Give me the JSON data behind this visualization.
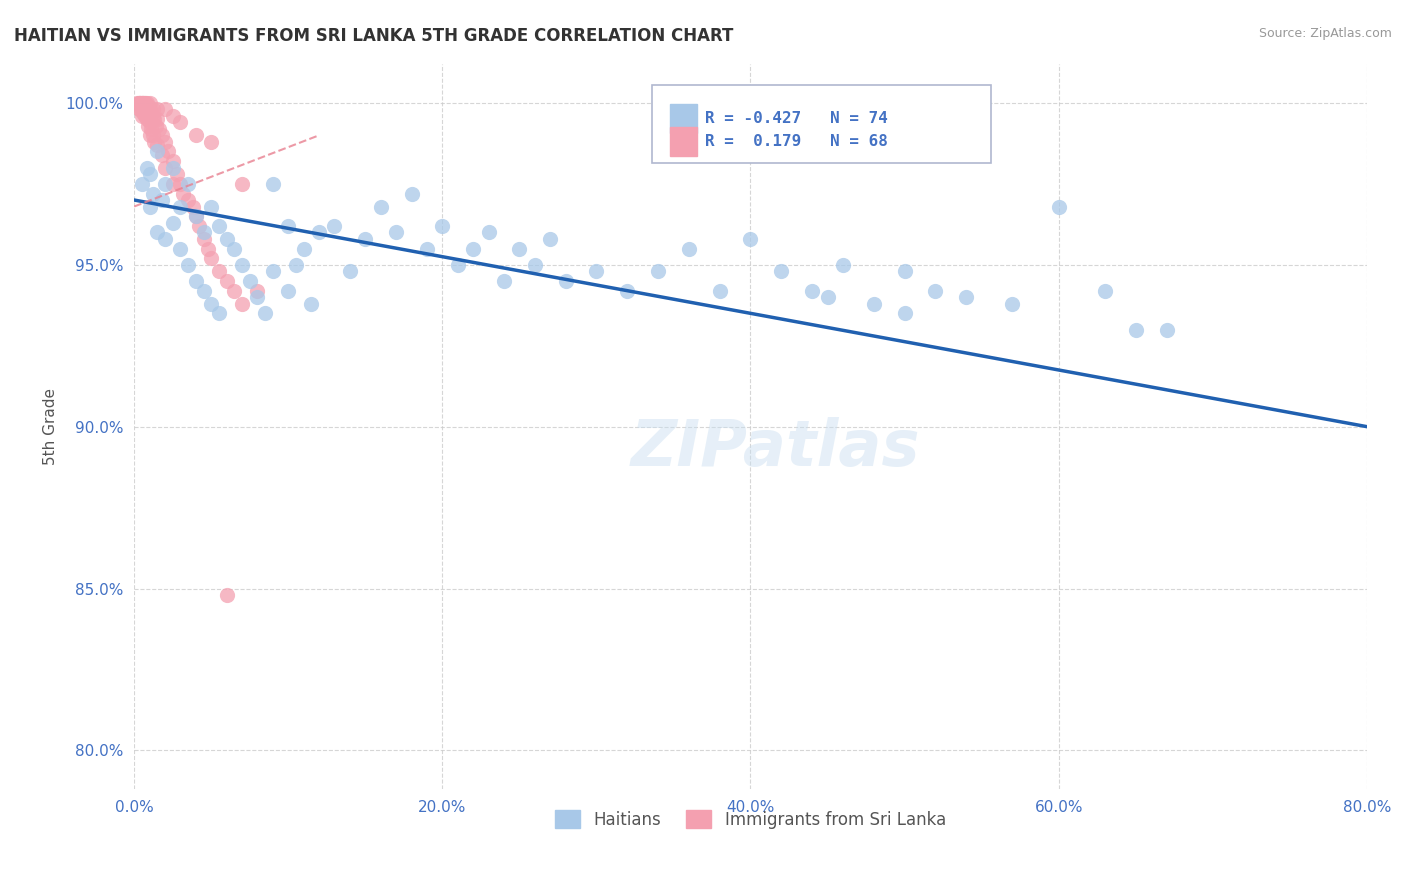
{
  "title": "HAITIAN VS IMMIGRANTS FROM SRI LANKA 5TH GRADE CORRELATION CHART",
  "source_text": "Source: ZipAtlas.com",
  "ylabel": "5th Grade",
  "xlim": [
    0.0,
    0.8
  ],
  "ylim": [
    0.788,
    1.012
  ],
  "xtick_labels": [
    "0.0%",
    "20.0%",
    "40.0%",
    "60.0%",
    "80.0%"
  ],
  "xtick_vals": [
    0.0,
    0.2,
    0.4,
    0.6,
    0.8
  ],
  "ytick_labels": [
    "80.0%",
    "85.0%",
    "90.0%",
    "95.0%",
    "100.0%"
  ],
  "ytick_vals": [
    0.8,
    0.85,
    0.9,
    0.95,
    1.0
  ],
  "blue_R": -0.427,
  "blue_N": 74,
  "pink_R": 0.179,
  "pink_N": 68,
  "blue_color": "#a8c8e8",
  "pink_color": "#f4a0b0",
  "line_color": "#2060b0",
  "pink_line_color": "#e88090",
  "title_color": "#333333",
  "axis_color": "#4472c4",
  "grid_color": "#cccccc",
  "watermark": "ZIPatlas",
  "blue_scatter_x": [
    0.005,
    0.008,
    0.01,
    0.01,
    0.012,
    0.015,
    0.015,
    0.018,
    0.02,
    0.02,
    0.025,
    0.025,
    0.03,
    0.03,
    0.035,
    0.035,
    0.04,
    0.04,
    0.045,
    0.045,
    0.05,
    0.05,
    0.055,
    0.055,
    0.06,
    0.065,
    0.07,
    0.075,
    0.08,
    0.085,
    0.09,
    0.09,
    0.1,
    0.1,
    0.105,
    0.11,
    0.115,
    0.12,
    0.13,
    0.14,
    0.15,
    0.16,
    0.17,
    0.18,
    0.19,
    0.2,
    0.21,
    0.22,
    0.23,
    0.24,
    0.25,
    0.26,
    0.27,
    0.28,
    0.3,
    0.32,
    0.34,
    0.36,
    0.38,
    0.4,
    0.42,
    0.44,
    0.46,
    0.48,
    0.5,
    0.52,
    0.54,
    0.57,
    0.6,
    0.63,
    0.65,
    0.67,
    0.5,
    0.45
  ],
  "blue_scatter_y": [
    0.975,
    0.98,
    0.978,
    0.968,
    0.972,
    0.985,
    0.96,
    0.97,
    0.975,
    0.958,
    0.98,
    0.963,
    0.968,
    0.955,
    0.975,
    0.95,
    0.965,
    0.945,
    0.96,
    0.942,
    0.968,
    0.938,
    0.962,
    0.935,
    0.958,
    0.955,
    0.95,
    0.945,
    0.94,
    0.935,
    0.975,
    0.948,
    0.962,
    0.942,
    0.95,
    0.955,
    0.938,
    0.96,
    0.962,
    0.948,
    0.958,
    0.968,
    0.96,
    0.972,
    0.955,
    0.962,
    0.95,
    0.955,
    0.96,
    0.945,
    0.955,
    0.95,
    0.958,
    0.945,
    0.948,
    0.942,
    0.948,
    0.955,
    0.942,
    0.958,
    0.948,
    0.942,
    0.95,
    0.938,
    0.948,
    0.942,
    0.94,
    0.938,
    0.968,
    0.942,
    0.93,
    0.93,
    0.935,
    0.94
  ],
  "pink_scatter_x": [
    0.002,
    0.003,
    0.003,
    0.004,
    0.004,
    0.005,
    0.005,
    0.005,
    0.006,
    0.006,
    0.007,
    0.007,
    0.008,
    0.008,
    0.009,
    0.009,
    0.01,
    0.01,
    0.01,
    0.011,
    0.011,
    0.012,
    0.012,
    0.013,
    0.013,
    0.014,
    0.015,
    0.015,
    0.016,
    0.018,
    0.018,
    0.02,
    0.02,
    0.022,
    0.025,
    0.025,
    0.028,
    0.03,
    0.032,
    0.035,
    0.038,
    0.04,
    0.042,
    0.045,
    0.048,
    0.05,
    0.055,
    0.06,
    0.065,
    0.07,
    0.003,
    0.004,
    0.005,
    0.006,
    0.007,
    0.008,
    0.009,
    0.01,
    0.012,
    0.015,
    0.02,
    0.025,
    0.03,
    0.04,
    0.05,
    0.06,
    0.07,
    0.08
  ],
  "pink_scatter_y": [
    1.0,
    1.0,
    0.998,
    1.0,
    0.998,
    1.0,
    0.998,
    0.996,
    1.0,
    0.997,
    1.0,
    0.996,
    0.999,
    0.995,
    0.998,
    0.993,
    0.998,
    0.994,
    0.99,
    0.997,
    0.992,
    0.996,
    0.99,
    0.995,
    0.988,
    0.993,
    0.995,
    0.987,
    0.992,
    0.99,
    0.984,
    0.988,
    0.98,
    0.985,
    0.982,
    0.975,
    0.978,
    0.975,
    0.972,
    0.97,
    0.968,
    0.965,
    0.962,
    0.958,
    0.955,
    0.952,
    0.948,
    0.945,
    0.942,
    0.938,
    1.0,
    1.0,
    1.0,
    1.0,
    1.0,
    1.0,
    0.999,
    1.0,
    0.998,
    0.998,
    0.998,
    0.996,
    0.994,
    0.99,
    0.988,
    0.848,
    0.975,
    0.942
  ],
  "trendline_x": [
    0.0,
    0.8
  ],
  "trendline_y": [
    0.97,
    0.9
  ],
  "pink_trendline_x": [
    0.0,
    0.12
  ],
  "pink_trendline_y": [
    0.968,
    0.99
  ]
}
